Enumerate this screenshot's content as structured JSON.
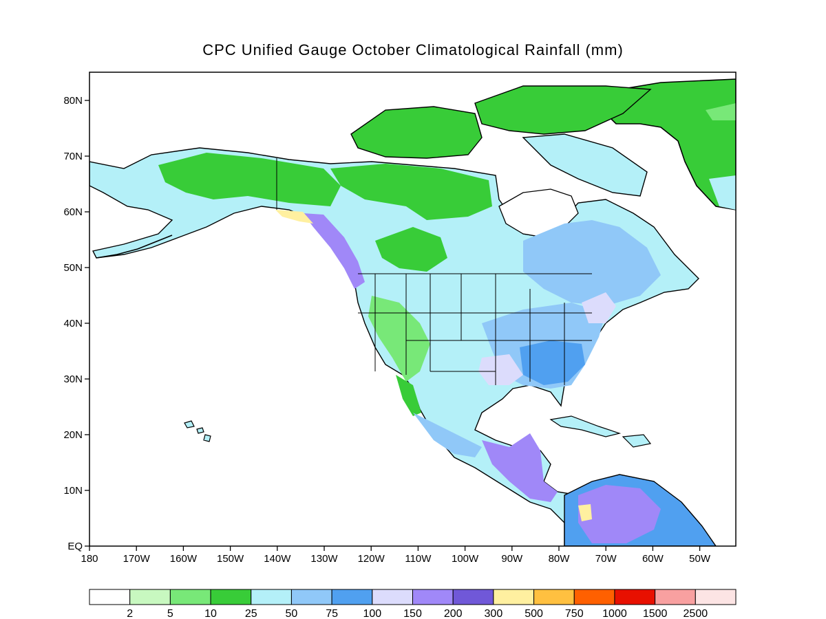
{
  "title": "CPC Unified Gauge October Climatological Rainfall (mm)",
  "map": {
    "lon_range": [
      180,
      -45
    ],
    "lat_range": [
      0,
      85
    ],
    "lat_ticks": [
      "EQ",
      "10N",
      "20N",
      "30N",
      "40N",
      "50N",
      "60N",
      "70N",
      "80N"
    ],
    "lon_ticks": [
      "180",
      "170W",
      "160W",
      "150W",
      "140W",
      "130W",
      "120W",
      "110W",
      "100W",
      "90W",
      "80W",
      "70W",
      "60W",
      "50W"
    ],
    "ocean_color": "#ffffff"
  },
  "colorbar": {
    "colors": [
      "#ffffff",
      "#c8f8c0",
      "#78e878",
      "#38cc38",
      "#b4f0f8",
      "#90c8f8",
      "#50a0f0",
      "#dcdcfc",
      "#a088f8",
      "#7058d8",
      "#fff0a0",
      "#ffc040",
      "#ff6000",
      "#e81000",
      "#f8a0a0",
      "#fce4e4"
    ],
    "labels": [
      "2",
      "5",
      "10",
      "25",
      "50",
      "75",
      "100",
      "150",
      "200",
      "300",
      "500",
      "750",
      "1000",
      "1500",
      "2500"
    ]
  }
}
